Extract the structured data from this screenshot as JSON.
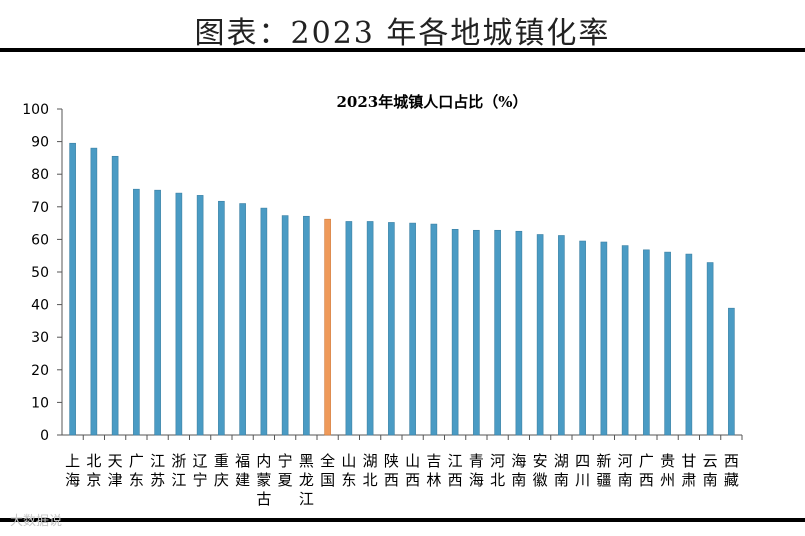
{
  "header": {
    "title": "图表：2023 年各地城镇化率"
  },
  "watermark": "大数据说",
  "chart_data": {
    "type": "bar",
    "title": "2023年城镇人口占比（%）",
    "xlabel": "",
    "ylabel": "",
    "ylim": [
      0,
      100
    ],
    "yticks": [
      0,
      10,
      20,
      30,
      40,
      50,
      60,
      70,
      80,
      90,
      100
    ],
    "categories": [
      "上海",
      "北京",
      "天津",
      "广东",
      "江苏",
      "浙江",
      "辽宁",
      "重庆",
      "福建",
      "内蒙古",
      "宁夏",
      "黑龙江",
      "全国",
      "山东",
      "湖北",
      "陕西",
      "山西",
      "吉林",
      "江西",
      "青海",
      "河北",
      "海南",
      "安徽",
      "湖南",
      "四川",
      "新疆",
      "河南",
      "广西",
      "贵州",
      "甘肃",
      "云南",
      "西藏"
    ],
    "values": [
      89.5,
      88.0,
      85.5,
      75.4,
      75.1,
      74.2,
      73.5,
      71.7,
      71.0,
      69.6,
      67.3,
      67.1,
      66.2,
      65.5,
      65.5,
      65.2,
      65.0,
      64.7,
      63.1,
      62.8,
      62.8,
      62.5,
      61.5,
      61.2,
      59.5,
      59.2,
      58.1,
      56.8,
      56.1,
      55.5,
      52.9,
      38.9
    ],
    "highlight": "全国",
    "colors": {
      "bar": "#4a9bc4",
      "bar_edge": "#3a7fa3",
      "highlight": "#ef9a5a",
      "highlight_edge": "#d07a3a",
      "axis": "#555555"
    }
  }
}
